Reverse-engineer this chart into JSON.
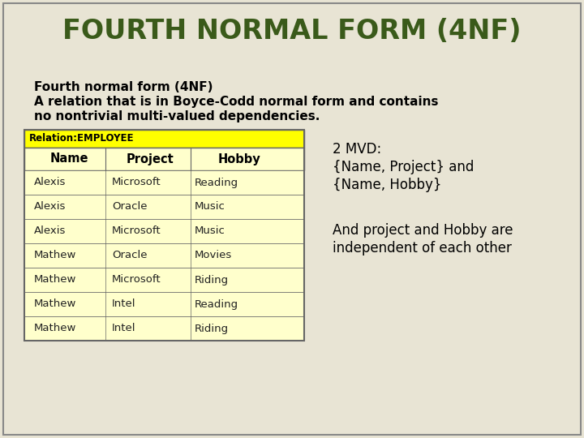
{
  "title": "FOURTH NORMAL FORM (4NF)",
  "title_color": "#3a5a1a",
  "background_color": "#e8e4d4",
  "subtitle_line1": "Fourth normal form (4NF)",
  "subtitle_line2": "A relation that is in Boyce-Codd normal form and contains",
  "subtitle_line3": "no nontrivial multi-valued dependencies.",
  "relation_label": "Relation:EMPLOYEE",
  "table_header": [
    "Name",
    "Project",
    "Hobby"
  ],
  "table_rows": [
    [
      "Alexis",
      "Microsoft",
      "Reading"
    ],
    [
      "Alexis",
      "Oracle",
      "Music"
    ],
    [
      "Alexis",
      "Microsoft",
      "Music"
    ],
    [
      "Mathew",
      "Oracle",
      "Movies"
    ],
    [
      "Mathew",
      "Microsoft",
      "Riding"
    ],
    [
      "Mathew",
      "Intel",
      "Reading"
    ],
    [
      "Mathew",
      "Intel",
      "Riding"
    ]
  ],
  "mvd_text_line1": "2 MVD:",
  "mvd_text_line2": "{Name, Project} and",
  "mvd_text_line3": "{Name, Hobby}",
  "note_text_line1": "And project and Hobby are",
  "note_text_line2": "independent of each other",
  "relation_bar_bg": "#ffff00",
  "header_bg": "#ffffcc",
  "data_row_bg": "#ffffcc",
  "table_border_color": "#666666",
  "header_text_color": "#000000",
  "cell_text_color": "#222222",
  "outer_border_color": "#888888"
}
